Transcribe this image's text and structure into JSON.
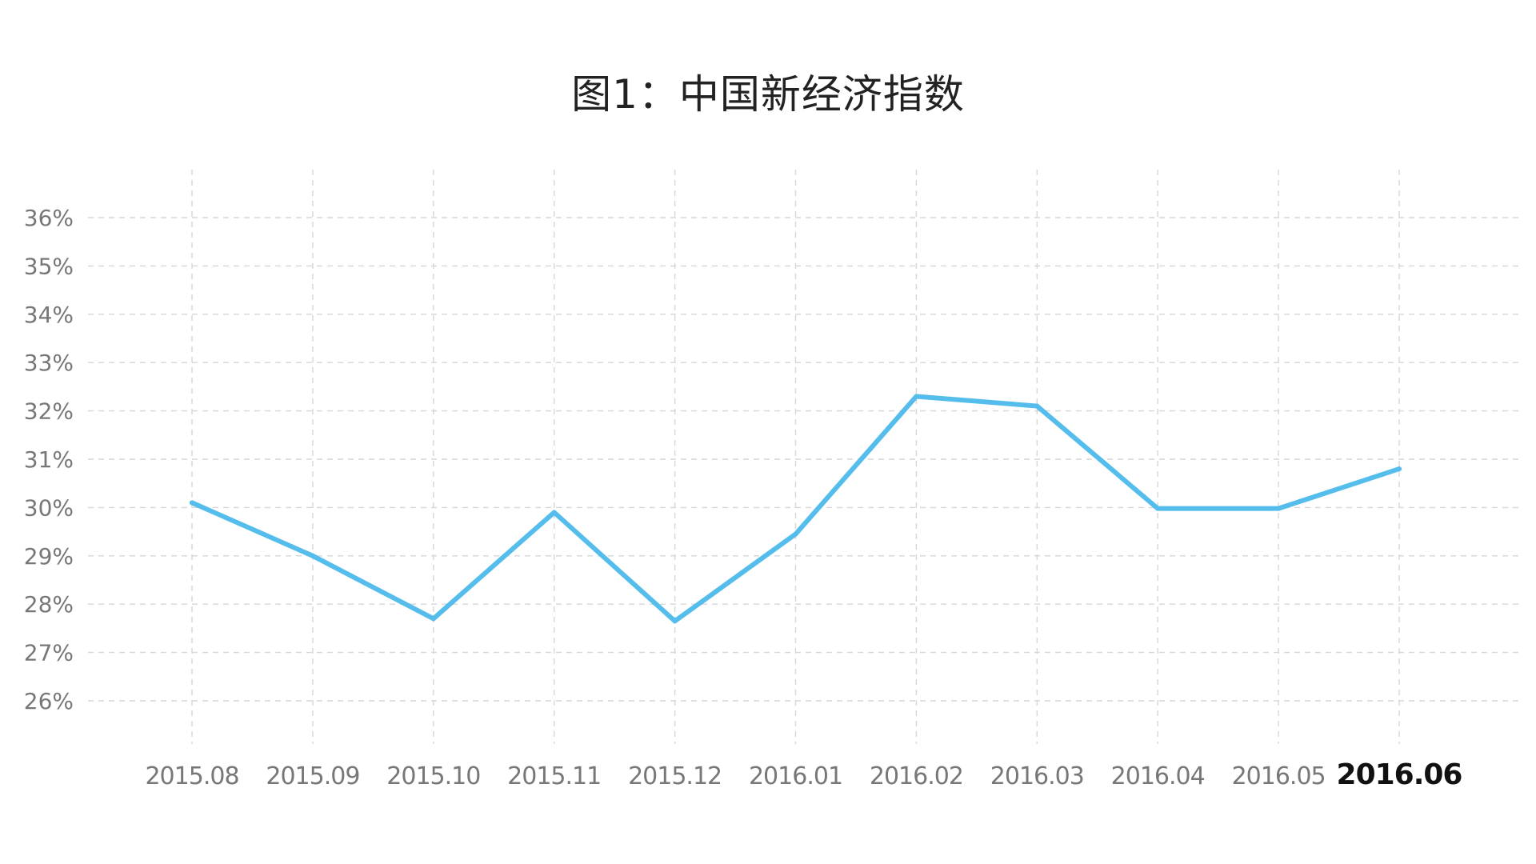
{
  "chart_data": {
    "type": "line",
    "title": "图1：中国新经济指数",
    "xlabel": "",
    "ylabel": "",
    "categories": [
      "2015.08",
      "2015.09",
      "2015.10",
      "2015.11",
      "2015.12",
      "2016.01",
      "2016.02",
      "2016.03",
      "2016.04",
      "2016.05",
      "2016.06"
    ],
    "highlight_category": "2016.06",
    "series": [
      {
        "values": [
          30.1,
          29.0,
          27.7,
          29.9,
          27.65,
          29.45,
          32.3,
          32.1,
          29.98,
          29.98,
          30.8
        ],
        "color": "#55bdec"
      }
    ],
    "ylim": [
      25,
      37
    ],
    "yticks": [
      26,
      27,
      28,
      29,
      30,
      31,
      32,
      33,
      34,
      35,
      36
    ],
    "y_tick_labels": [
      "26%",
      "27%",
      "28%",
      "29%",
      "30%",
      "31%",
      "32%",
      "33%",
      "34%",
      "35%",
      "36%"
    ],
    "grid": true,
    "grid_style": "dashed",
    "legend": "none"
  }
}
